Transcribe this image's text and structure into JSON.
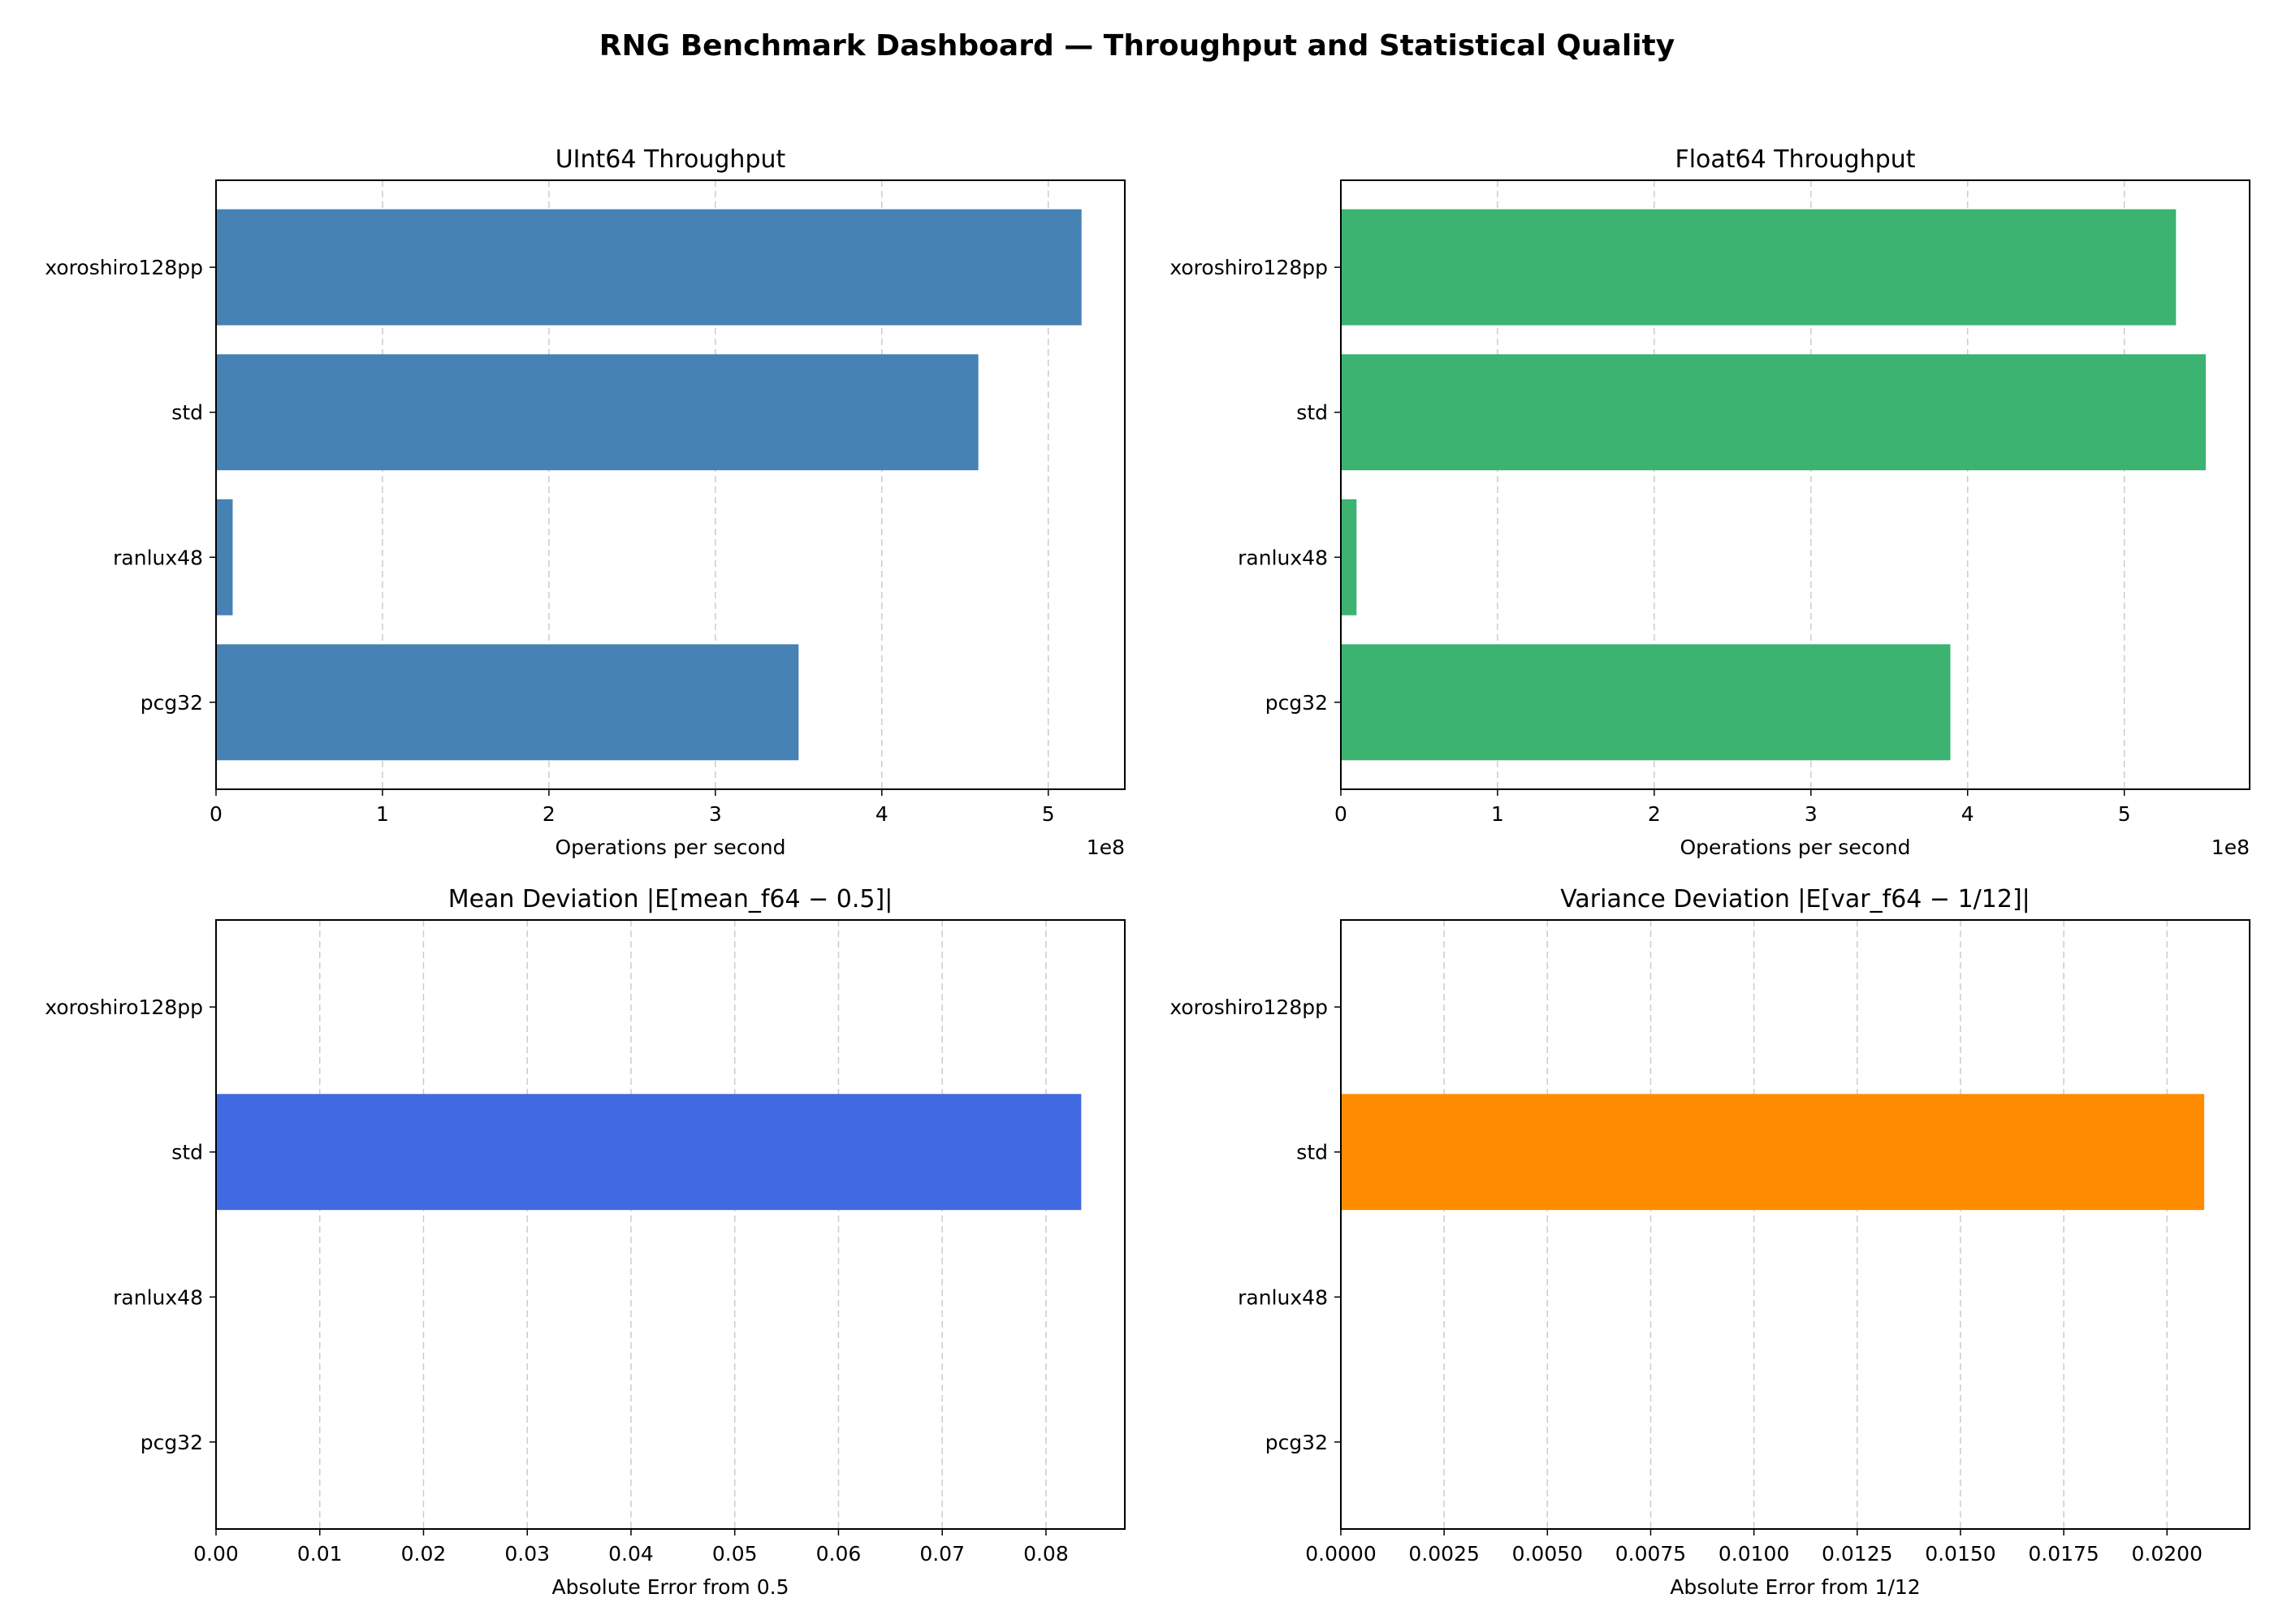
{
  "figure": {
    "title": "RNG Benchmark Dashboard — Throughput and Statistical Quality"
  },
  "chart_data": [
    {
      "type": "bar",
      "orientation": "horizontal",
      "title": "UInt64 Throughput",
      "xlabel": "Operations per second",
      "ylabel": "",
      "categories": [
        "xoroshiro128pp",
        "std",
        "ranlux48",
        "pcg32"
      ],
      "values": [
        520000000,
        458000000,
        10000000,
        350000000
      ],
      "xlim": [
        0,
        546000000
      ],
      "xticks": [
        0,
        100000000,
        200000000,
        300000000,
        400000000,
        500000000
      ],
      "xtick_labels": [
        "0",
        "1",
        "2",
        "3",
        "4",
        "5"
      ],
      "offset_text": "1e8",
      "color": "#4682b4",
      "grid": "x-dashed"
    },
    {
      "type": "bar",
      "orientation": "horizontal",
      "title": "Float64 Throughput",
      "xlabel": "Operations per second",
      "ylabel": "",
      "categories": [
        "xoroshiro128pp",
        "std",
        "ranlux48",
        "pcg32"
      ],
      "values": [
        533000000,
        552000000,
        10000000,
        389000000
      ],
      "xlim": [
        0,
        580000000
      ],
      "xticks": [
        0,
        100000000,
        200000000,
        300000000,
        400000000,
        500000000
      ],
      "xtick_labels": [
        "0",
        "1",
        "2",
        "3",
        "4",
        "5"
      ],
      "offset_text": "1e8",
      "color": "#3cb371",
      "grid": "x-dashed"
    },
    {
      "type": "bar",
      "orientation": "horizontal",
      "title": "Mean Deviation |E[mean_f64 − 0.5]|",
      "xlabel": "Absolute Error from 0.5",
      "ylabel": "",
      "categories": [
        "xoroshiro128pp",
        "std",
        "ranlux48",
        "pcg32"
      ],
      "values": [
        0.0,
        0.0834,
        0.0,
        0.0
      ],
      "xlim": [
        0,
        0.0876
      ],
      "xticks": [
        0,
        0.01,
        0.02,
        0.03,
        0.04,
        0.05,
        0.06,
        0.07,
        0.08
      ],
      "xtick_labels": [
        "0.00",
        "0.01",
        "0.02",
        "0.03",
        "0.04",
        "0.05",
        "0.06",
        "0.07",
        "0.08"
      ],
      "offset_text": "",
      "color": "#4169e1",
      "grid": "x-dashed"
    },
    {
      "type": "bar",
      "orientation": "horizontal",
      "title": "Variance Deviation |E[var_f64 − 1/12]|",
      "xlabel": "Absolute Error from 1/12",
      "ylabel": "",
      "categories": [
        "xoroshiro128pp",
        "std",
        "ranlux48",
        "pcg32"
      ],
      "values": [
        0.0,
        0.0209,
        0.0,
        0.0
      ],
      "xlim": [
        0,
        0.022
      ],
      "xticks": [
        0,
        0.0025,
        0.005,
        0.0075,
        0.01,
        0.0125,
        0.015,
        0.0175,
        0.02
      ],
      "xtick_labels": [
        "0.0000",
        "0.0025",
        "0.0050",
        "0.0075",
        "0.0100",
        "0.0125",
        "0.0150",
        "0.0175",
        "0.0200"
      ],
      "offset_text": "",
      "color": "#ff8c00",
      "grid": "x-dashed"
    }
  ]
}
